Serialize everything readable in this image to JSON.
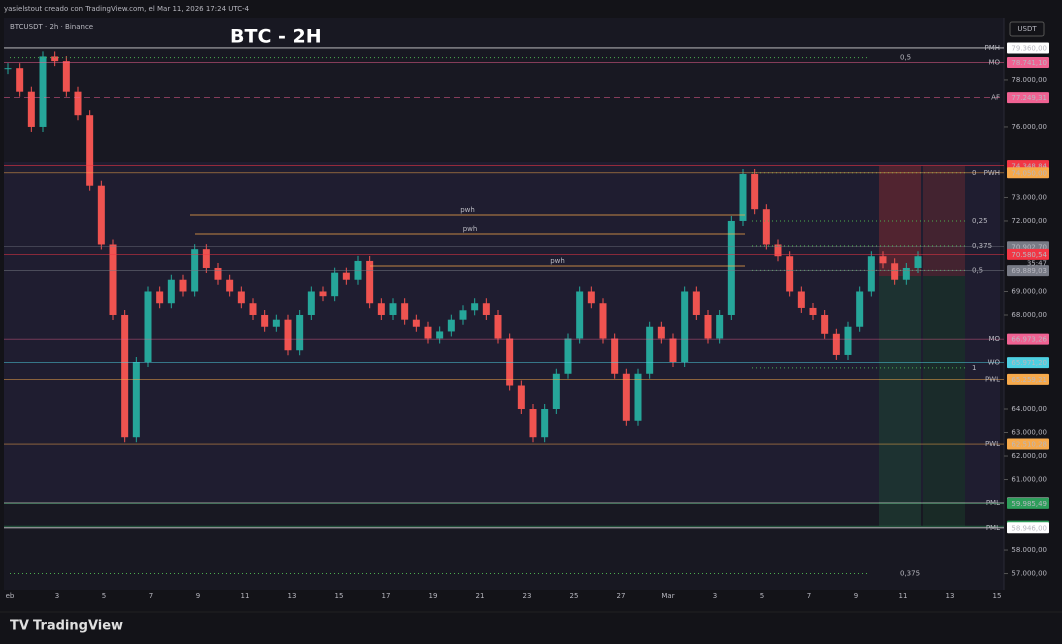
{
  "header": {
    "credit": "yasielstout creado con TradingView.com, el Mar 11, 2026 17:24 UTC-4",
    "symbol": "BTCUSDT · 2h · Binance",
    "title": "BTC - 2H",
    "currency": "USDT"
  },
  "footer": {
    "brand": "TradingView"
  },
  "ylim": [
    56300,
    80550
  ],
  "yticks": [
    {
      "value": 78000,
      "label": "78.000,00"
    },
    {
      "value": 76000,
      "label": "76.000,00"
    },
    {
      "value": 73000,
      "label": "73.000,00"
    },
    {
      "value": 72000,
      "label": "72.000,00"
    },
    {
      "value": 69000,
      "label": "69.000,00"
    },
    {
      "value": 68000,
      "label": "68.000,00"
    },
    {
      "value": 64000,
      "label": "64.000,00"
    },
    {
      "value": 63000,
      "label": "63.000,00"
    },
    {
      "value": 62000,
      "label": "62.000,00"
    },
    {
      "value": 61000,
      "label": "61.000,00"
    },
    {
      "value": 58000,
      "label": "58.000,00"
    },
    {
      "value": 57000,
      "label": "57.000,00"
    }
  ],
  "dates": [
    "eb",
    "3",
    "5",
    "7",
    "9",
    "11",
    "13",
    "15",
    "17",
    "19",
    "21",
    "23",
    "25",
    "27",
    "Mar",
    "3",
    "5",
    "7",
    "9",
    "11",
    "13",
    "15"
  ],
  "levels": [
    {
      "name": "PMH",
      "value": 79360,
      "label": "79.360,00",
      "color": "#ffffff"
    },
    {
      "name": "MO",
      "value": 78741.1,
      "label": "78.741,10",
      "color": "#f06292"
    },
    {
      "name": "AF",
      "value": 77249.31,
      "label": "77.249,31",
      "color": "#f06292"
    },
    {
      "value": 74354.66,
      "label": "74.354,66",
      "color": "#f23645"
    },
    {
      "value": 74348.84,
      "label": "74.348,84",
      "color": "#f23645"
    },
    {
      "name": "PWH",
      "value": 74050,
      "label": "74.050,00",
      "color": "#f7a94a"
    },
    {
      "value": 70902.7,
      "label": "70.902,70",
      "color": "#787b86"
    },
    {
      "value": 70580.54,
      "label": "70.580,54",
      "color": "#f23645"
    },
    {
      "value": 69889.03,
      "label": "69.889,03",
      "color": "#787b86"
    },
    {
      "name": "MO",
      "value": 66973.26,
      "label": "66.973,26",
      "color": "#f06292"
    },
    {
      "name": "WO",
      "value": 65971.2,
      "label": "65.971,20",
      "color": "#4dd0e1"
    },
    {
      "name": "PWL",
      "value": 65259.21,
      "label": "65.259,21",
      "color": "#f7a94a"
    },
    {
      "name": "PWL",
      "value": 62510.28,
      "label": "62.510,28",
      "color": "#f7a94a"
    },
    {
      "name": "PML",
      "value": 60000,
      "label": "60.000,00",
      "color": "#ffffff"
    },
    {
      "value": 59985.49,
      "label": "59.985,49",
      "color": "#2e9e5b"
    },
    {
      "value": 59016.74,
      "label": "59.016,74",
      "color": "#2e9e5b"
    },
    {
      "name": "PML",
      "value": 58946,
      "label": "58.946,00",
      "color": "#ffffff"
    }
  ],
  "countdown": "35:47",
  "fib": [
    {
      "label": "0,5",
      "value": 78950
    },
    {
      "label": "0",
      "value": 74050
    },
    {
      "label": "0,25",
      "value": 72000
    },
    {
      "label": "0,375",
      "value": 70940
    },
    {
      "label": "0,5",
      "value": 69900
    },
    {
      "label": "1",
      "value": 65750
    },
    {
      "label": "0,375",
      "value": 57000
    }
  ],
  "pwh": [
    {
      "label": "pwh",
      "value": 72255
    },
    {
      "label": "pwh",
      "value": 71447
    },
    {
      "label": "pwh",
      "value": 70085
    }
  ],
  "price_trace": [
    78500,
    77500,
    76000,
    79000,
    78800,
    77500,
    76500,
    73500,
    71000,
    68000,
    62800,
    66000,
    69000,
    68500,
    69500,
    69000,
    70800,
    70000,
    69500,
    69000,
    68500,
    68000,
    67500,
    67800,
    66500,
    68000,
    69000,
    68800,
    69800,
    69500,
    70300,
    68500,
    68000,
    68500,
    67800,
    67500,
    67000,
    67300,
    67800,
    68200,
    68500,
    68000,
    67000,
    65000,
    64000,
    62800,
    64000,
    65500,
    67000,
    69000,
    68500,
    67000,
    65500,
    63500,
    65500,
    67500,
    67000,
    66000,
    69000,
    68000,
    67000,
    68000,
    72000,
    74000,
    72500,
    71000,
    70500,
    69000,
    68300,
    68000,
    67200,
    66300,
    67500,
    69000,
    70500,
    70200,
    69500,
    70000,
    70500
  ]
}
